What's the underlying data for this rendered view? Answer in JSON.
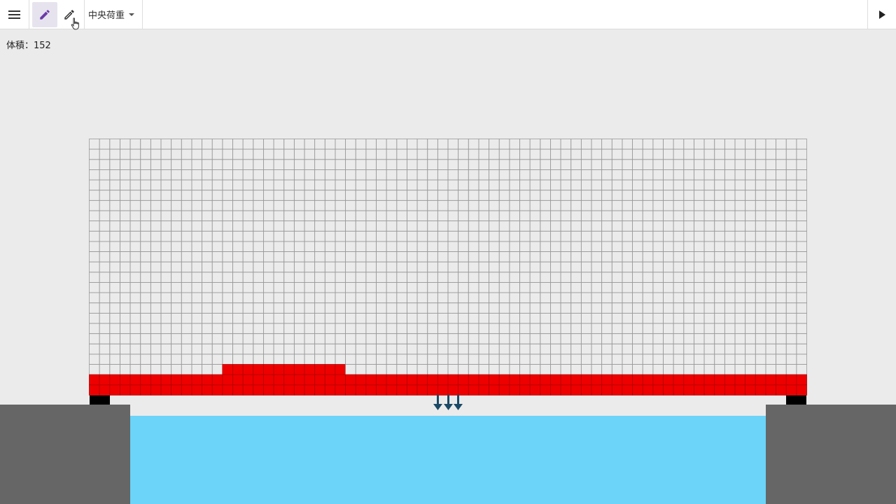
{
  "toolbar": {
    "menu_icon": "hamburger-menu-icon",
    "pen_icon": "pencil-icon",
    "eraser_icon": "pencil-outline-icon",
    "load_select": {
      "selected": "中央荷重",
      "icon": "caret-down-icon"
    },
    "play_icon": "play-icon"
  },
  "status": {
    "volume_label": "体積：",
    "volume_value": "152"
  },
  "grid": {
    "cols": 70,
    "rows": 25,
    "filled": [
      {
        "row": 22,
        "col_start": 13,
        "col_end": 24
      },
      {
        "row": 23,
        "col_start": 0,
        "col_end": 69
      },
      {
        "row": 24,
        "col_start": 0,
        "col_end": 69
      }
    ]
  },
  "colors": {
    "filled": "#ee0000",
    "water": "#6bd4f8",
    "ground": "#666666",
    "support": "#000000",
    "arrow": "#1b4a66",
    "accent": "#6a3ca8"
  }
}
